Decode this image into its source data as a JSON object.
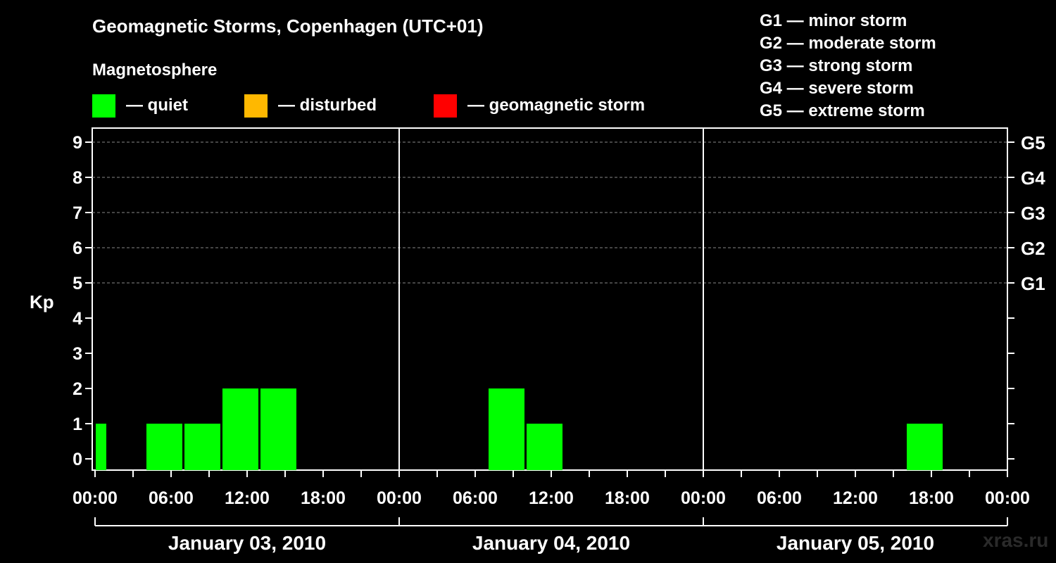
{
  "legend": {
    "magnetosphere_label": "Magnetosphere",
    "items": [
      {
        "color": "#00ff00",
        "label": "— quiet"
      },
      {
        "color": "#ffb800",
        "label": "— disturbed"
      },
      {
        "color": "#ff0000",
        "label": "— geomagnetic storm"
      }
    ]
  },
  "storm_scale": [
    "G1 — minor storm",
    "G2 — moderate storm",
    "G3 — strong storm",
    "G4 — severe storm",
    "G5 — extreme storm"
  ],
  "watermark": "xras.ru",
  "chart_data": {
    "type": "bar",
    "title": "Geomagnetic Storms, Copenhagen (UTC+01)",
    "ylabel": "Kp",
    "xlabel": "",
    "ylim": [
      0,
      9
    ],
    "y_ticks": [
      "0",
      "1",
      "2",
      "3",
      "4",
      "5",
      "6",
      "7",
      "8",
      "9"
    ],
    "right_axis_labels": [
      {
        "kp": 5,
        "label": "G1"
      },
      {
        "kp": 6,
        "label": "G2"
      },
      {
        "kp": 7,
        "label": "G3"
      },
      {
        "kp": 8,
        "label": "G4"
      },
      {
        "kp": 9,
        "label": "G5"
      }
    ],
    "x_range_hours": [
      0,
      72
    ],
    "x_tick_labels": [
      "00:00",
      "06:00",
      "12:00",
      "18:00",
      "00:00",
      "06:00",
      "12:00",
      "18:00",
      "00:00",
      "06:00",
      "12:00",
      "18:00",
      "00:00"
    ],
    "days": [
      "January 03, 2010",
      "January 04, 2010",
      "January 05, 2010"
    ],
    "grid": true,
    "bars": [
      {
        "start_hour": 0,
        "end_hour": 1,
        "kp": 1,
        "status": "quiet"
      },
      {
        "start_hour": 4,
        "end_hour": 7,
        "kp": 1,
        "status": "quiet"
      },
      {
        "start_hour": 7,
        "end_hour": 10,
        "kp": 1,
        "status": "quiet"
      },
      {
        "start_hour": 10,
        "end_hour": 13,
        "kp": 2,
        "status": "quiet"
      },
      {
        "start_hour": 13,
        "end_hour": 16,
        "kp": 2,
        "status": "quiet"
      },
      {
        "start_hour": 31,
        "end_hour": 34,
        "kp": 2,
        "status": "quiet"
      },
      {
        "start_hour": 34,
        "end_hour": 37,
        "kp": 1,
        "status": "quiet"
      },
      {
        "start_hour": 64,
        "end_hour": 67,
        "kp": 1,
        "status": "quiet"
      }
    ]
  }
}
